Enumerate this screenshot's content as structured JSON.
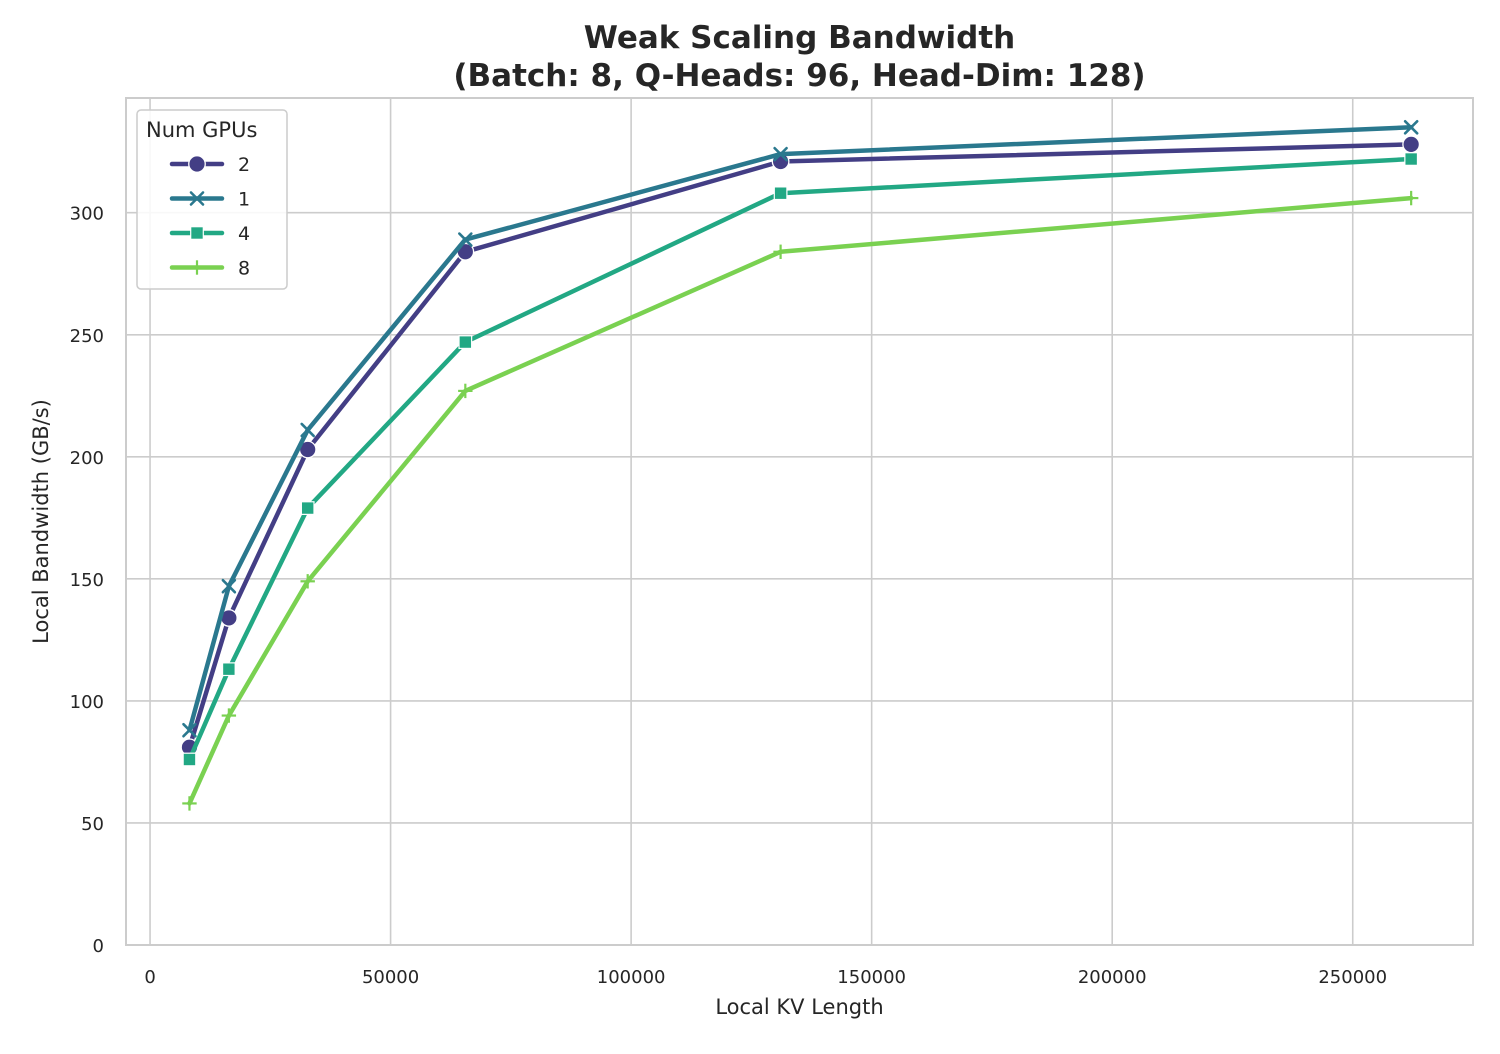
{
  "chart_data": {
    "type": "line",
    "title_line1": "Weak Scaling Bandwidth",
    "title_line2": "(Batch: 8, Q-Heads: 96, Head-Dim: 128)",
    "xlabel": "Local KV Length",
    "ylabel": "Local Bandwidth (GB/s)",
    "xlim": [
      -5000,
      275000
    ],
    "ylim": [
      0,
      347
    ],
    "xticks": [
      0,
      50000,
      100000,
      150000,
      200000,
      250000
    ],
    "xtick_labels": [
      "0",
      "50000",
      "100000",
      "150000",
      "200000",
      "250000"
    ],
    "yticks": [
      0,
      50,
      100,
      150,
      200,
      250,
      300
    ],
    "ytick_labels": [
      "0",
      "50",
      "100",
      "150",
      "200",
      "250",
      "300"
    ],
    "grid": true,
    "legend_title": "Num GPUs",
    "legend_position": "top-left",
    "x": [
      8192,
      16384,
      32768,
      65536,
      131072,
      262144
    ],
    "series": [
      {
        "name": "2",
        "color": "#433e85",
        "marker": "circle",
        "values": [
          81,
          134,
          203,
          284,
          321,
          328
        ]
      },
      {
        "name": "1",
        "color": "#2a788e",
        "marker": "x",
        "values": [
          88,
          147,
          211,
          289,
          324,
          335
        ]
      },
      {
        "name": "4",
        "color": "#22a884",
        "marker": "square",
        "values": [
          76,
          113,
          179,
          247,
          308,
          322
        ]
      },
      {
        "name": "8",
        "color": "#7ad151",
        "marker": "plus",
        "values": [
          58,
          94,
          149,
          227,
          284,
          306
        ]
      }
    ]
  }
}
